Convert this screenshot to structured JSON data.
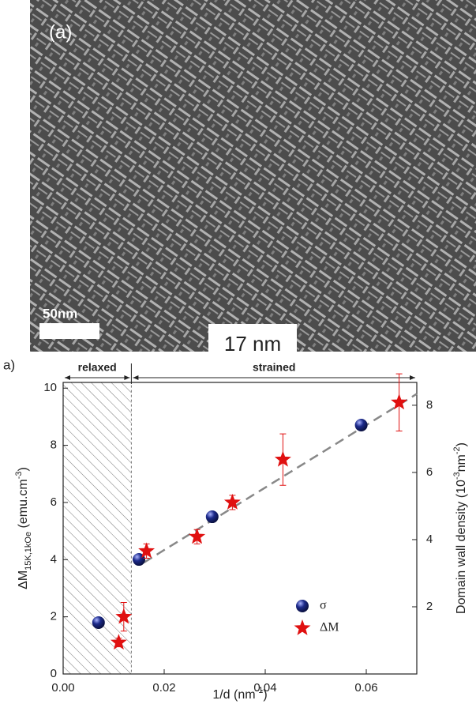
{
  "image": {
    "panel_label": "(a)",
    "scale_bar": "50nm",
    "caption": "17 nm"
  },
  "chart_data": {
    "type": "scatter",
    "panel_label": "a)",
    "xlabel": {
      "main": "1/d (nm",
      "sup": "-1",
      "end": ")"
    },
    "ylabel": {
      "main": "ΔM",
      "sub": "15K,1kOe",
      "unit": " (emu.cm",
      "sup": "-3",
      "end": ")"
    },
    "y2label": {
      "main": "Domain wall density (10",
      "sup": "-3",
      "mid": "nm",
      "sup2": "-2",
      "end": ")"
    },
    "xlim": [
      0,
      0.07
    ],
    "ylim": [
      0,
      10.2
    ],
    "y2lim": [
      0,
      8.68
    ],
    "xticks": [
      {
        "value": 0,
        "label": "0.00"
      },
      {
        "value": 0.02,
        "label": "0.02"
      },
      {
        "value": 0.04,
        "label": "0.04"
      },
      {
        "value": 0.06,
        "label": "0.06"
      }
    ],
    "yticks": [
      0,
      2,
      4,
      6,
      8,
      10
    ],
    "y2ticks": [
      2,
      4,
      6,
      8
    ],
    "regions": [
      {
        "label": "relaxed",
        "x": [
          0,
          0.0135
        ]
      },
      {
        "label": "strained",
        "x": [
          0.0135,
          0.07
        ]
      }
    ],
    "series": [
      {
        "name": "σ",
        "color": "#1c2a8a",
        "marker": "sphere",
        "axis": "y2",
        "x": [
          0.007,
          0.015,
          0.0295,
          0.059
        ],
        "values": [
          1.53,
          3.41,
          4.68,
          7.41
        ]
      },
      {
        "name": "ΔM",
        "color": "#e01010",
        "marker": "star",
        "x": [
          0.011,
          0.012,
          0.0165,
          0.0265,
          0.0335,
          0.0435,
          0.0665
        ],
        "values": [
          1.1,
          2.0,
          4.3,
          4.8,
          6.0,
          7.5,
          9.5
        ],
        "errors": [
          0.15,
          0.5,
          0.25,
          0.25,
          0.25,
          0.9,
          1.0
        ]
      }
    ],
    "trend_line": {
      "color": "#888888",
      "x": [
        0.016,
        0.07
      ],
      "values": [
        3.9,
        9.8
      ]
    },
    "legend": "lower right"
  }
}
